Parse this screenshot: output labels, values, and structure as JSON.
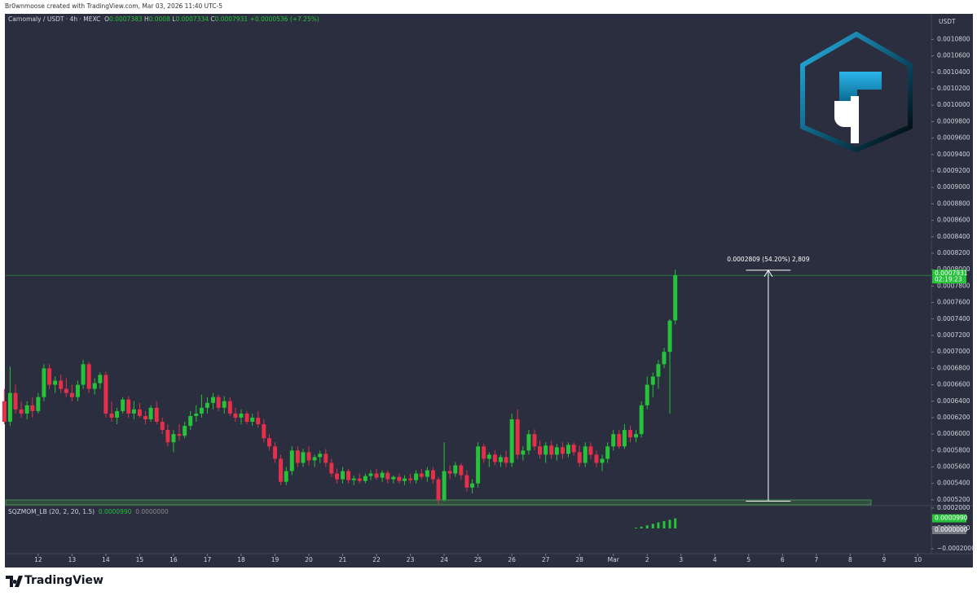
{
  "header": {
    "author_line": "Br0wnmoose created with TradingView.com, Mar 03, 2026 11:40 UTC-5",
    "brand": "TradingView"
  },
  "chart_data": [
    {
      "type": "candlestick",
      "title": "Carnomaly / USDT · 4h · MEXC",
      "currency": "USDT",
      "ohlc_labels": [
        "O",
        "H",
        "L",
        "C"
      ],
      "change": "+0.0000536 (+7.25%)",
      "countdown": "02:19:23",
      "up_color": "#26c23a",
      "down_color": "#e5304c",
      "xlim": [
        11.04,
        38.4
      ],
      "ylim": [
        0.000514,
        0.00112
      ],
      "x": [
        11,
        11.17,
        11.33,
        11.5,
        11.67,
        11.83,
        12,
        12.17,
        12.33,
        12.5,
        12.67,
        12.83,
        13,
        13.17,
        13.33,
        13.5,
        13.67,
        13.83,
        14,
        14.17,
        14.33,
        14.5,
        14.67,
        14.83,
        15,
        15.17,
        15.33,
        15.5,
        15.67,
        15.83,
        16,
        16.17,
        16.33,
        16.5,
        16.67,
        16.83,
        17,
        17.17,
        17.33,
        17.5,
        17.67,
        17.83,
        18,
        18.17,
        18.33,
        18.5,
        18.67,
        18.83,
        19,
        19.17,
        19.33,
        19.5,
        19.67,
        19.83,
        20,
        20.17,
        20.33,
        20.5,
        20.67,
        20.83,
        21,
        21.17,
        21.33,
        21.5,
        21.67,
        21.83,
        22,
        22.17,
        22.33,
        22.5,
        22.67,
        22.83,
        23,
        23.17,
        23.33,
        23.5,
        23.67,
        23.83,
        24,
        24.17,
        24.33,
        24.5,
        24.67,
        24.83,
        25,
        25.17,
        25.33,
        25.5,
        25.67,
        25.83,
        26,
        26.17,
        26.33,
        26.5,
        26.67,
        26.83,
        27,
        27.17,
        27.33,
        27.5,
        27.67,
        27.83,
        28,
        28.17,
        28.33,
        28.5,
        28.67,
        28.83,
        29,
        29.17,
        29.33,
        29.5,
        29.67,
        29.83,
        30,
        30.17,
        30.33,
        30.5,
        30.67,
        30.83
      ],
      "candles": [
        [
          0.00064,
          0.000655,
          0.000612,
          0.000615
        ],
        [
          0.000615,
          0.000682,
          0.00061,
          0.00065
        ],
        [
          0.00065,
          0.00066,
          0.000625,
          0.00063
        ],
        [
          0.00063,
          0.00064,
          0.00062,
          0.000625
        ],
        [
          0.000625,
          0.00064,
          0.000618,
          0.000635
        ],
        [
          0.000635,
          0.000645,
          0.00062,
          0.000628
        ],
        [
          0.000628,
          0.00065,
          0.000625,
          0.000645
        ],
        [
          0.000645,
          0.000685,
          0.00064,
          0.00068
        ],
        [
          0.00068,
          0.000685,
          0.000655,
          0.00066
        ],
        [
          0.00066,
          0.00067,
          0.00065,
          0.000665
        ],
        [
          0.000665,
          0.000672,
          0.00065,
          0.000655
        ],
        [
          0.000655,
          0.000668,
          0.000645,
          0.00065
        ],
        [
          0.00065,
          0.00066,
          0.00064,
          0.000645
        ],
        [
          0.000645,
          0.000665,
          0.00064,
          0.00066
        ],
        [
          0.00066,
          0.00069,
          0.000655,
          0.000685
        ],
        [
          0.000685,
          0.000688,
          0.00065,
          0.000655
        ],
        [
          0.000655,
          0.000668,
          0.000648,
          0.000662
        ],
        [
          0.000662,
          0.000675,
          0.000655,
          0.000672
        ],
        [
          0.000672,
          0.000676,
          0.00062,
          0.000625
        ],
        [
          0.000625,
          0.00064,
          0.000615,
          0.00062
        ],
        [
          0.00062,
          0.000632,
          0.000612,
          0.000628
        ],
        [
          0.000628,
          0.000645,
          0.000625,
          0.000642
        ],
        [
          0.000642,
          0.000646,
          0.00062,
          0.000625
        ],
        [
          0.000625,
          0.00064,
          0.000618,
          0.00063
        ],
        [
          0.00063,
          0.000638,
          0.00062,
          0.000622
        ],
        [
          0.000622,
          0.000628,
          0.000612,
          0.000618
        ],
        [
          0.000618,
          0.000635,
          0.000615,
          0.000632
        ],
        [
          0.000632,
          0.00064,
          0.000612,
          0.000615
        ],
        [
          0.000615,
          0.00062,
          0.0006,
          0.000605
        ],
        [
          0.000605,
          0.000612,
          0.000585,
          0.00059
        ],
        [
          0.00059,
          0.000605,
          0.000578,
          0.0006
        ],
        [
          0.0006,
          0.000612,
          0.000592,
          0.000598
        ],
        [
          0.000598,
          0.000615,
          0.000595,
          0.00061
        ],
        [
          0.00061,
          0.000628,
          0.000605,
          0.000622
        ],
        [
          0.000622,
          0.000635,
          0.000615,
          0.000625
        ],
        [
          0.000625,
          0.000648,
          0.00062,
          0.000632
        ],
        [
          0.000632,
          0.000645,
          0.000625,
          0.000638
        ],
        [
          0.000638,
          0.00065,
          0.00063,
          0.000645
        ],
        [
          0.000645,
          0.000648,
          0.000628,
          0.000632
        ],
        [
          0.000632,
          0.000646,
          0.000625,
          0.00064
        ],
        [
          0.00064,
          0.000645,
          0.000622,
          0.000625
        ],
        [
          0.000625,
          0.000632,
          0.000615,
          0.00062
        ],
        [
          0.00062,
          0.00063,
          0.000612,
          0.000625
        ],
        [
          0.000625,
          0.000628,
          0.000612,
          0.000615
        ],
        [
          0.000615,
          0.000625,
          0.00061,
          0.00062
        ],
        [
          0.00062,
          0.000628,
          0.000608,
          0.000612
        ],
        [
          0.000612,
          0.000618,
          0.00059,
          0.000595
        ],
        [
          0.000595,
          0.0006,
          0.00058,
          0.000585
        ],
        [
          0.000585,
          0.00059,
          0.000565,
          0.00057
        ],
        [
          0.00057,
          0.000575,
          0.000538,
          0.000542
        ],
        [
          0.000542,
          0.00056,
          0.000538,
          0.000555
        ],
        [
          0.000555,
          0.000585,
          0.00055,
          0.00058
        ],
        [
          0.00058,
          0.000585,
          0.00056,
          0.000565
        ],
        [
          0.000565,
          0.000582,
          0.00056,
          0.000578
        ],
        [
          0.000578,
          0.000585,
          0.000562,
          0.000568
        ],
        [
          0.000568,
          0.000575,
          0.00056,
          0.000572
        ],
        [
          0.000572,
          0.00058,
          0.000565,
          0.000576
        ],
        [
          0.000576,
          0.000582,
          0.00056,
          0.000565
        ],
        [
          0.000565,
          0.00057,
          0.000548,
          0.000552
        ],
        [
          0.000552,
          0.000558,
          0.00054,
          0.000545
        ],
        [
          0.000545,
          0.00056,
          0.00054,
          0.000555
        ],
        [
          0.000555,
          0.000558,
          0.00054,
          0.000544
        ],
        [
          0.000544,
          0.00055,
          0.000538,
          0.000546
        ],
        [
          0.000546,
          0.000552,
          0.00054,
          0.000543
        ],
        [
          0.000543,
          0.000552,
          0.00054,
          0.000549
        ],
        [
          0.000549,
          0.000556,
          0.000544,
          0.000552
        ],
        [
          0.000552,
          0.000558,
          0.000544,
          0.000547
        ],
        [
          0.000547,
          0.000556,
          0.000542,
          0.000553
        ],
        [
          0.000553,
          0.000556,
          0.00054,
          0.000545
        ],
        [
          0.000545,
          0.00055,
          0.00054,
          0.000548
        ],
        [
          0.000548,
          0.000552,
          0.00054,
          0.000543
        ],
        [
          0.000543,
          0.00055,
          0.000538,
          0.000546
        ],
        [
          0.000546,
          0.000552,
          0.00054,
          0.000544
        ],
        [
          0.000544,
          0.000556,
          0.00054,
          0.000552
        ],
        [
          0.000552,
          0.000558,
          0.000545,
          0.000548
        ],
        [
          0.000548,
          0.00056,
          0.000542,
          0.000556
        ],
        [
          0.000556,
          0.00056,
          0.00054,
          0.000545
        ],
        [
          0.000545,
          0.000548,
          0.000515,
          0.00052
        ],
        [
          0.00052,
          0.00059,
          0.000518,
          0.000555
        ],
        [
          0.000555,
          0.000562,
          0.000545,
          0.000552
        ],
        [
          0.000552,
          0.000566,
          0.000548,
          0.000562
        ],
        [
          0.000562,
          0.000565,
          0.000545,
          0.00055
        ],
        [
          0.00055,
          0.000556,
          0.00053,
          0.000535
        ],
        [
          0.000535,
          0.000545,
          0.000528,
          0.00054
        ],
        [
          0.00054,
          0.00059,
          0.000535,
          0.000585
        ],
        [
          0.000585,
          0.000588,
          0.000565,
          0.00057
        ],
        [
          0.00057,
          0.000578,
          0.00056,
          0.000575
        ],
        [
          0.000575,
          0.00058,
          0.000562,
          0.000566
        ],
        [
          0.000566,
          0.000575,
          0.00056,
          0.000572
        ],
        [
          0.000572,
          0.00058,
          0.00056,
          0.000565
        ],
        [
          0.000565,
          0.000625,
          0.00056,
          0.000618
        ],
        [
          0.000618,
          0.00063,
          0.00057,
          0.000575
        ],
        [
          0.000575,
          0.000585,
          0.000568,
          0.00058
        ],
        [
          0.00058,
          0.000605,
          0.000575,
          0.0006
        ],
        [
          0.0006,
          0.000606,
          0.00058,
          0.000585
        ],
        [
          0.000585,
          0.000592,
          0.00057,
          0.000575
        ],
        [
          0.000575,
          0.00059,
          0.000565,
          0.000586
        ],
        [
          0.000586,
          0.000592,
          0.00057,
          0.000575
        ],
        [
          0.000575,
          0.000588,
          0.000568,
          0.000584
        ],
        [
          0.000584,
          0.00059,
          0.00057,
          0.000576
        ],
        [
          0.000576,
          0.00059,
          0.000572,
          0.000587
        ],
        [
          0.000587,
          0.00059,
          0.000574,
          0.000578
        ],
        [
          0.000578,
          0.000586,
          0.00056,
          0.000565
        ],
        [
          0.000565,
          0.00059,
          0.00056,
          0.000585
        ],
        [
          0.000585,
          0.00059,
          0.00057,
          0.000575
        ],
        [
          0.000575,
          0.00058,
          0.00056,
          0.000565
        ],
        [
          0.000565,
          0.000575,
          0.000555,
          0.00057
        ],
        [
          0.00057,
          0.00059,
          0.000565,
          0.000585
        ],
        [
          0.000585,
          0.000605,
          0.00058,
          0.0006
        ],
        [
          0.0006,
          0.000605,
          0.000582,
          0.000585
        ],
        [
          0.000585,
          0.000612,
          0.000582,
          0.000605
        ],
        [
          0.000605,
          0.00061,
          0.00059,
          0.000596
        ],
        [
          0.000596,
          0.000605,
          0.00059,
          0.0006
        ],
        [
          0.0006,
          0.00064,
          0.000596,
          0.000635
        ],
        [
          0.000635,
          0.00067,
          0.00063,
          0.00066
        ],
        [
          0.00066,
          0.000675,
          0.000645,
          0.00067
        ],
        [
          0.00067,
          0.00069,
          0.000655,
          0.000685
        ],
        [
          0.000685,
          0.000705,
          0.00068,
          0.0007
        ],
        [
          0.0007,
          0.00074,
          0.000625,
          0.000738
        ],
        [
          0.0007383,
          0.0008,
          0.0007334,
          0.0007931
        ]
      ],
      "xticks": [
        12,
        13,
        14,
        15,
        16,
        17,
        18,
        19,
        20,
        21,
        22,
        23,
        24,
        25,
        26,
        27,
        28,
        {
          "value": 29,
          "label": "Mar"
        },
        {
          "value": 30,
          "label": "2"
        },
        {
          "value": 31,
          "label": "3"
        },
        {
          "value": 32,
          "label": "4"
        },
        {
          "value": 33,
          "label": "5"
        },
        {
          "value": 34,
          "label": "6"
        },
        {
          "value": 35,
          "label": "7"
        },
        {
          "value": 36,
          "label": "8"
        },
        {
          "value": 37,
          "label": "9"
        },
        {
          "value": 38,
          "label": "10"
        }
      ],
      "yticks": [
        {
          "value": 0.00052,
          "label": "0.0005200"
        },
        {
          "value": 0.00054,
          "label": "0.0005400"
        },
        {
          "value": 0.00056,
          "label": "0.0005600"
        },
        {
          "value": 0.00058,
          "label": "0.0005800"
        },
        {
          "value": 0.0006,
          "label": "0.0006000"
        },
        {
          "value": 0.00062,
          "label": "0.0006200"
        },
        {
          "value": 0.00064,
          "label": "0.0006400"
        },
        {
          "value": 0.00066,
          "label": "0.0006600"
        },
        {
          "value": 0.00068,
          "label": "0.0006800"
        },
        {
          "value": 0.0007,
          "label": "0.0007000"
        },
        {
          "value": 0.00072,
          "label": "0.0007200"
        },
        {
          "value": 0.00074,
          "label": "0.0007400"
        },
        {
          "value": 0.00076,
          "label": "0.0007600"
        },
        {
          "value": 0.00078,
          "label": "0.0007800"
        },
        {
          "value": 0.0008,
          "label": "0.0008000"
        },
        {
          "value": 0.00082,
          "label": "0.0008200"
        },
        {
          "value": 0.00084,
          "label": "0.0008400"
        },
        {
          "value": 0.00086,
          "label": "0.0008600"
        },
        {
          "value": 0.00088,
          "label": "0.0008800"
        },
        {
          "value": 0.0009,
          "label": "0.0009000"
        },
        {
          "value": 0.00092,
          "label": "0.0009200"
        },
        {
          "value": 0.00094,
          "label": "0.0009400"
        },
        {
          "value": 0.00096,
          "label": "0.0009600"
        },
        {
          "value": 0.00098,
          "label": "0.0009800"
        },
        {
          "value": 0.001,
          "label": "0.0010000"
        },
        {
          "value": 0.00102,
          "label": "0.0010200"
        },
        {
          "value": 0.00104,
          "label": "0.0010400"
        },
        {
          "value": 0.00106,
          "label": "0.0010600"
        },
        {
          "value": 0.00108,
          "label": "0.0010800"
        }
      ],
      "measure": {
        "label": "0.0002809 (54.20%) 2,809",
        "from": 0.0005184,
        "to": 0.0007993,
        "x": [
          32.92,
          34.24
        ]
      }
    },
    {
      "type": "bar",
      "title": "SQZMOM_LB (20, 2, 20, 1.5)",
      "color": "#26c23a",
      "x": [
        29.67,
        29.83,
        30,
        30.17,
        30.33,
        30.5,
        30.67,
        30.83
      ],
      "values": [
        8e-06,
        1.8e-05,
        3e-05,
        4.5e-05,
        6e-05,
        7.2e-05,
        8.5e-05,
        9.9e-05
      ],
      "ylim": [
        -0.000248,
        0.000216
      ],
      "yticks": [
        {
          "value": 0.0002,
          "label": "0.0002000"
        },
        {
          "value": 0,
          "label": "0.0000000"
        },
        {
          "value": -0.0002,
          "label": "−0.0002000"
        }
      ],
      "readouts": [
        {
          "value": 9.9e-05,
          "label": "0.0000990"
        },
        {
          "value": 0,
          "label": "0.0000000"
        }
      ]
    }
  ]
}
